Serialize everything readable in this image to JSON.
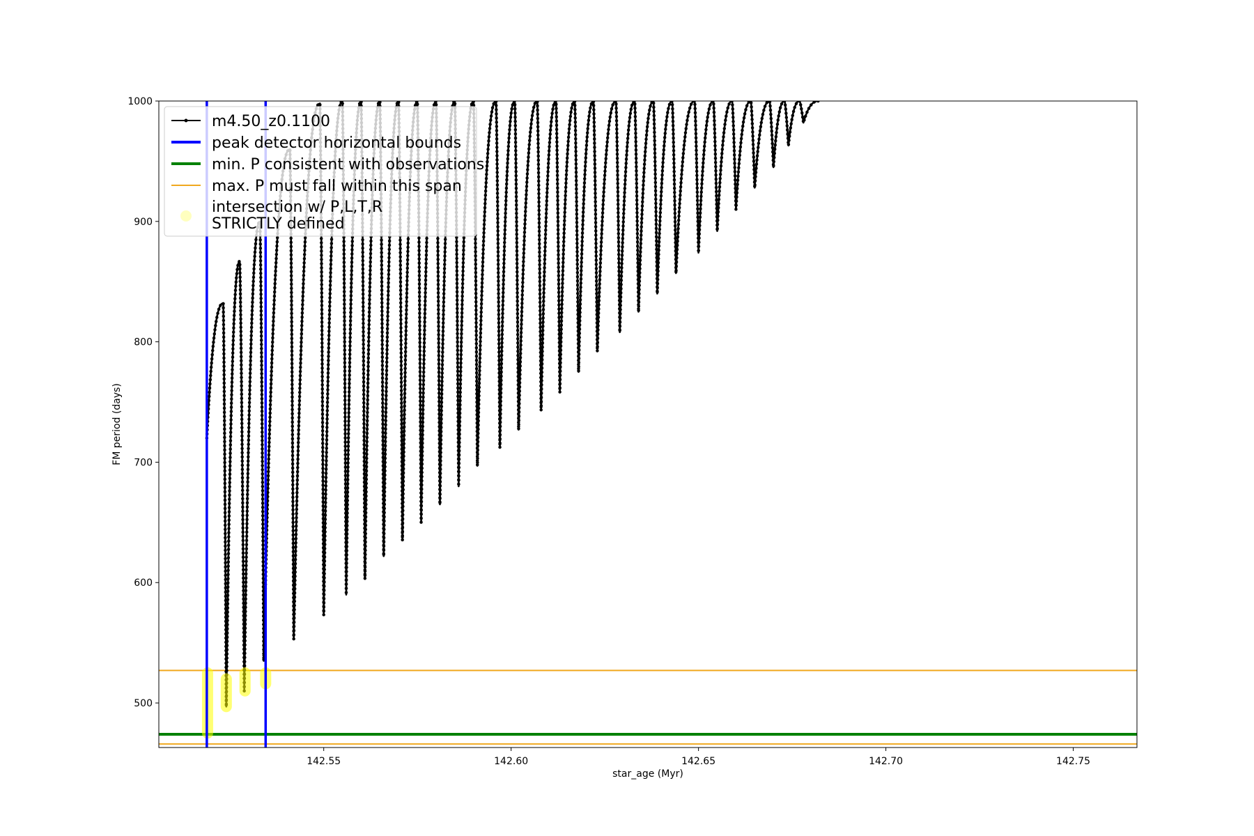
{
  "chart_data": {
    "type": "line",
    "title": "",
    "xlabel": "star_age (Myr)",
    "ylabel": "FM period (days)",
    "xlim": [
      142.506,
      142.767
    ],
    "ylim": [
      463,
      1000
    ],
    "grid": false,
    "legend_position": "top-left",
    "x_ticks": [
      {
        "value": 142.55,
        "label": "142.55"
      },
      {
        "value": 142.6,
        "label": "142.60"
      },
      {
        "value": 142.65,
        "label": "142.65"
      },
      {
        "value": 142.7,
        "label": "142.70"
      },
      {
        "value": 142.75,
        "label": "142.75"
      }
    ],
    "y_ticks": [
      {
        "value": 500,
        "label": "500"
      },
      {
        "value": 600,
        "label": "600"
      },
      {
        "value": 700,
        "label": "700"
      },
      {
        "value": 800,
        "label": "800"
      },
      {
        "value": 900,
        "label": "900"
      },
      {
        "value": 1000,
        "label": "1000"
      }
    ],
    "series": [
      {
        "name": "m4.50_z0.1100",
        "kind": "line-with-markers",
        "color": "#000000",
        "start": {
          "x": 142.5188,
          "y": 720
        },
        "cycles": [
          {
            "x_peak": 142.5232,
            "peak": 832,
            "x_min": 142.524,
            "min": 497
          },
          {
            "x_peak": 142.5276,
            "peak": 867,
            "x_min": 142.5288,
            "min": 510
          },
          {
            "x_peak": 142.533,
            "peak": 900,
            "x_min": 142.534,
            "min": 535
          },
          {
            "x_peak": 142.541,
            "peak": 960,
            "x_min": 142.542,
            "min": 553
          },
          {
            "x_peak": 142.549,
            "peak": 998,
            "x_min": 142.55,
            "min": 573
          },
          {
            "x_peak": 142.555,
            "peak": 1000,
            "x_min": 142.556,
            "min": 590
          },
          {
            "x_peak": 142.56,
            "peak": 1000,
            "x_min": 142.561,
            "min": 603
          },
          {
            "x_peak": 142.565,
            "peak": 1000,
            "x_min": 142.566,
            "min": 622
          },
          {
            "x_peak": 142.57,
            "peak": 1000,
            "x_min": 142.571,
            "min": 635
          },
          {
            "x_peak": 142.575,
            "peak": 1000,
            "x_min": 142.576,
            "min": 650
          },
          {
            "x_peak": 142.58,
            "peak": 1000,
            "x_min": 142.581,
            "min": 665
          },
          {
            "x_peak": 142.585,
            "peak": 1000,
            "x_min": 142.586,
            "min": 680
          },
          {
            "x_peak": 142.59,
            "peak": 1000,
            "x_min": 142.591,
            "min": 697
          },
          {
            "x_peak": 142.596,
            "peak": 1000,
            "x_min": 142.597,
            "min": 712
          },
          {
            "x_peak": 142.601,
            "peak": 1000,
            "x_min": 142.602,
            "min": 727
          },
          {
            "x_peak": 142.607,
            "peak": 1000,
            "x_min": 142.608,
            "min": 743
          },
          {
            "x_peak": 142.612,
            "peak": 1000,
            "x_min": 142.613,
            "min": 758
          },
          {
            "x_peak": 142.617,
            "peak": 1000,
            "x_min": 142.618,
            "min": 775
          },
          {
            "x_peak": 142.622,
            "peak": 1000,
            "x_min": 142.623,
            "min": 792
          },
          {
            "x_peak": 142.628,
            "peak": 1000,
            "x_min": 142.629,
            "min": 808
          },
          {
            "x_peak": 142.633,
            "peak": 1000,
            "x_min": 142.634,
            "min": 825
          },
          {
            "x_peak": 142.638,
            "peak": 1000,
            "x_min": 142.639,
            "min": 840
          },
          {
            "x_peak": 142.643,
            "peak": 1000,
            "x_min": 142.644,
            "min": 857
          },
          {
            "x_peak": 142.649,
            "peak": 1000,
            "x_min": 142.65,
            "min": 874
          },
          {
            "x_peak": 142.654,
            "peak": 1000,
            "x_min": 142.655,
            "min": 892
          },
          {
            "x_peak": 142.659,
            "peak": 1000,
            "x_min": 142.66,
            "min": 910
          },
          {
            "x_peak": 142.664,
            "peak": 1000,
            "x_min": 142.665,
            "min": 928
          },
          {
            "x_peak": 142.669,
            "peak": 1000,
            "x_min": 142.67,
            "min": 945
          },
          {
            "x_peak": 142.673,
            "peak": 1000,
            "x_min": 142.674,
            "min": 963
          },
          {
            "x_peak": 142.677,
            "peak": 1000,
            "x_min": 142.678,
            "min": 982
          }
        ],
        "end": {
          "x": 142.682,
          "y": 1000
        }
      },
      {
        "name": "peak detector horizontal bounds",
        "kind": "vline",
        "color": "#0000ff",
        "x": [
          142.5188,
          142.5345
        ]
      },
      {
        "name": "min. P consistent with observations",
        "kind": "hline",
        "color": "#008000",
        "y": [
          474
        ]
      },
      {
        "name": "max. P must fall within this span",
        "kind": "hline",
        "color": "#f0a81e",
        "y": [
          527,
          466
        ]
      },
      {
        "name": "intersection w/ P,L,T,R\nSTRICTLY defined",
        "kind": "scatter",
        "color": "#ffff00",
        "points": [
          {
            "x": 142.519,
            "y_from": 475,
            "y_to": 525
          },
          {
            "x": 142.524,
            "y_from": 497,
            "y_to": 520
          },
          {
            "x": 142.529,
            "y_from": 510,
            "y_to": 525
          },
          {
            "x": 142.5345,
            "y_from": 516,
            "y_to": 525
          }
        ]
      }
    ]
  }
}
